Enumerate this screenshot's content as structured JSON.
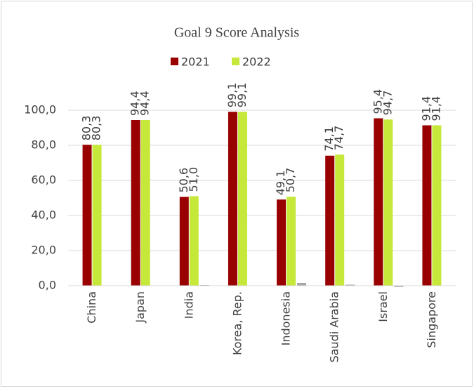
{
  "chart_data": {
    "type": "bar",
    "title": "Goal 9 Score Analysis",
    "categories": [
      "China",
      "Japan",
      "India",
      "Korea, Rep.",
      "Indonesia",
      "Saudi Arabia",
      "Israel",
      "Singapore"
    ],
    "series": [
      {
        "name": "2021",
        "color": "#990000",
        "values": [
          80.3,
          94.4,
          50.6,
          99.1,
          49.1,
          74.1,
          95.4,
          91.4
        ],
        "value_labels": [
          "80,3",
          "94,4",
          "50,6",
          "99,1",
          "49,1",
          "74,1",
          "95,4",
          "91,4"
        ]
      },
      {
        "name": "2022",
        "color": "#c5e83a",
        "values": [
          80.3,
          94.4,
          51.0,
          99.1,
          50.7,
          74.7,
          94.7,
          91.4
        ],
        "value_labels": [
          "80,3",
          "94,4",
          "51,0",
          "99,1",
          "50,7",
          "74,7",
          "94,7",
          "91,4"
        ]
      },
      {
        "color": "#a6a6a6",
        "values": [
          0,
          0,
          0.4,
          0,
          1.6,
          0.6,
          -0.7,
          0
        ]
      }
    ],
    "ylim": [
      0,
      100
    ],
    "yticks": [
      {
        "value": 0,
        "label": "0,0"
      },
      {
        "value": 20,
        "label": "20,0"
      },
      {
        "value": 40,
        "label": "40,0"
      },
      {
        "value": 60,
        "label": "60,0"
      },
      {
        "value": 80,
        "label": "80,0"
      },
      {
        "value": 100,
        "label": "100,0"
      }
    ],
    "grid": true,
    "legend": "top"
  }
}
